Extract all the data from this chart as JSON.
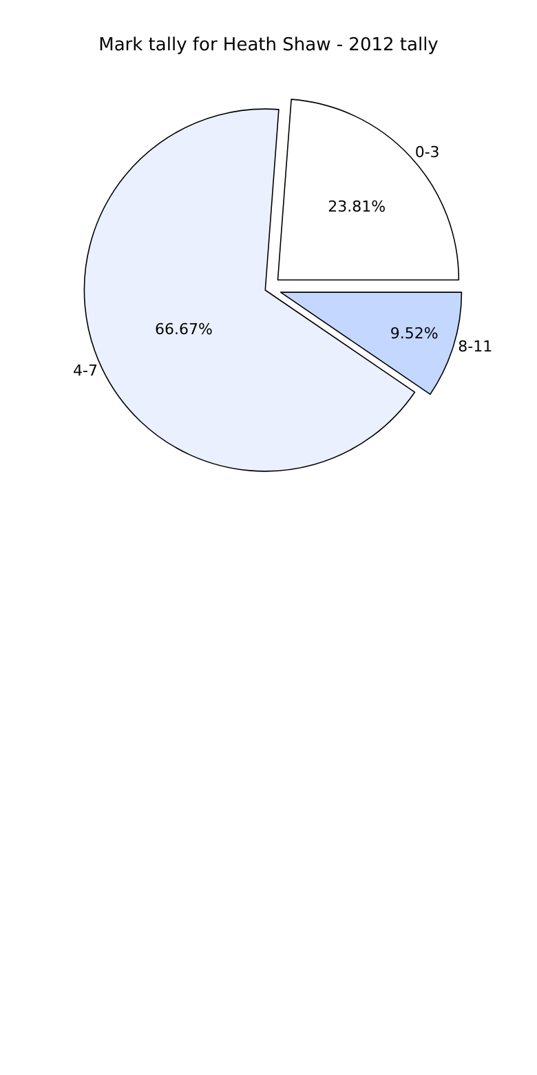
{
  "chart_data": {
    "type": "pie",
    "title": "Mark tally for Heath Shaw - 2012 tally",
    "categories": [
      "0-3",
      "4-7",
      "8-11"
    ],
    "values": [
      23.81,
      66.67,
      9.52
    ],
    "value_labels": [
      "23.81%",
      "66.67%",
      "9.52%"
    ],
    "colors": [
      "#ffffff",
      "#eaf0fe",
      "#c4d7fe"
    ],
    "legend": false
  }
}
